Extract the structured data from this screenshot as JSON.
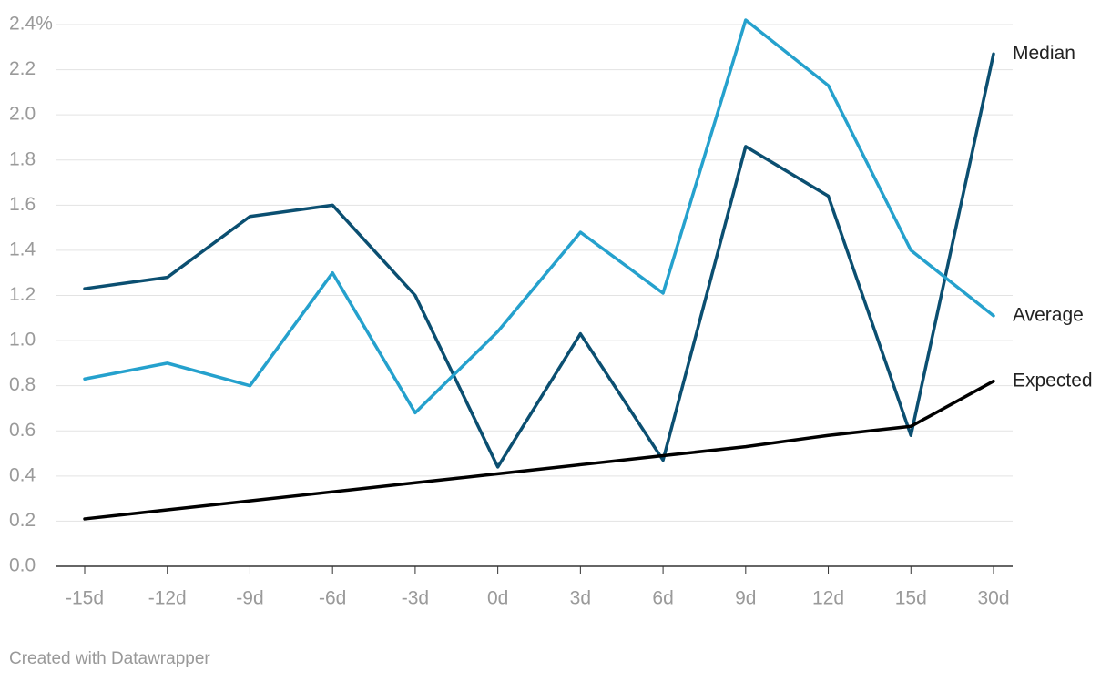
{
  "chart_data": {
    "type": "line",
    "categories": [
      "-15d",
      "-12d",
      "-9d",
      "-6d",
      "-3d",
      "0d",
      "3d",
      "6d",
      "9d",
      "12d",
      "15d",
      "30d"
    ],
    "series": [
      {
        "name": "Median",
        "color": "#0b4f71",
        "values": [
          1.23,
          1.28,
          1.55,
          1.6,
          1.2,
          0.44,
          1.03,
          0.47,
          1.86,
          1.64,
          0.58,
          2.27
        ]
      },
      {
        "name": "Average",
        "color": "#25a1cd",
        "values": [
          0.83,
          0.9,
          0.8,
          1.3,
          0.68,
          1.04,
          1.48,
          1.21,
          2.42,
          2.13,
          1.4,
          1.11
        ]
      },
      {
        "name": "Expected",
        "color": "#000000",
        "values": [
          0.21,
          0.25,
          0.29,
          0.33,
          0.37,
          0.41,
          0.45,
          0.49,
          0.53,
          0.58,
          0.62,
          0.82
        ]
      }
    ],
    "ylim": [
      0,
      2.4
    ],
    "yticks": [
      {
        "value": 0,
        "label": "0.0"
      },
      {
        "value": 0.2,
        "label": "0.2"
      },
      {
        "value": 0.4,
        "label": "0.4"
      },
      {
        "value": 0.6,
        "label": "0.6"
      },
      {
        "value": 0.8,
        "label": "0.8"
      },
      {
        "value": 1,
        "label": "1.0"
      },
      {
        "value": 1.2,
        "label": "1.2"
      },
      {
        "value": 1.4,
        "label": "1.4"
      },
      {
        "value": 1.6,
        "label": "1.6"
      },
      {
        "value": 1.8,
        "label": "1.8"
      },
      {
        "value": 2,
        "label": "2.0"
      },
      {
        "value": 2.2,
        "label": "2.2"
      },
      {
        "value": 2.4,
        "label": "2.4%"
      }
    ],
    "grid": true,
    "credit": "Created with Datawrapper"
  }
}
